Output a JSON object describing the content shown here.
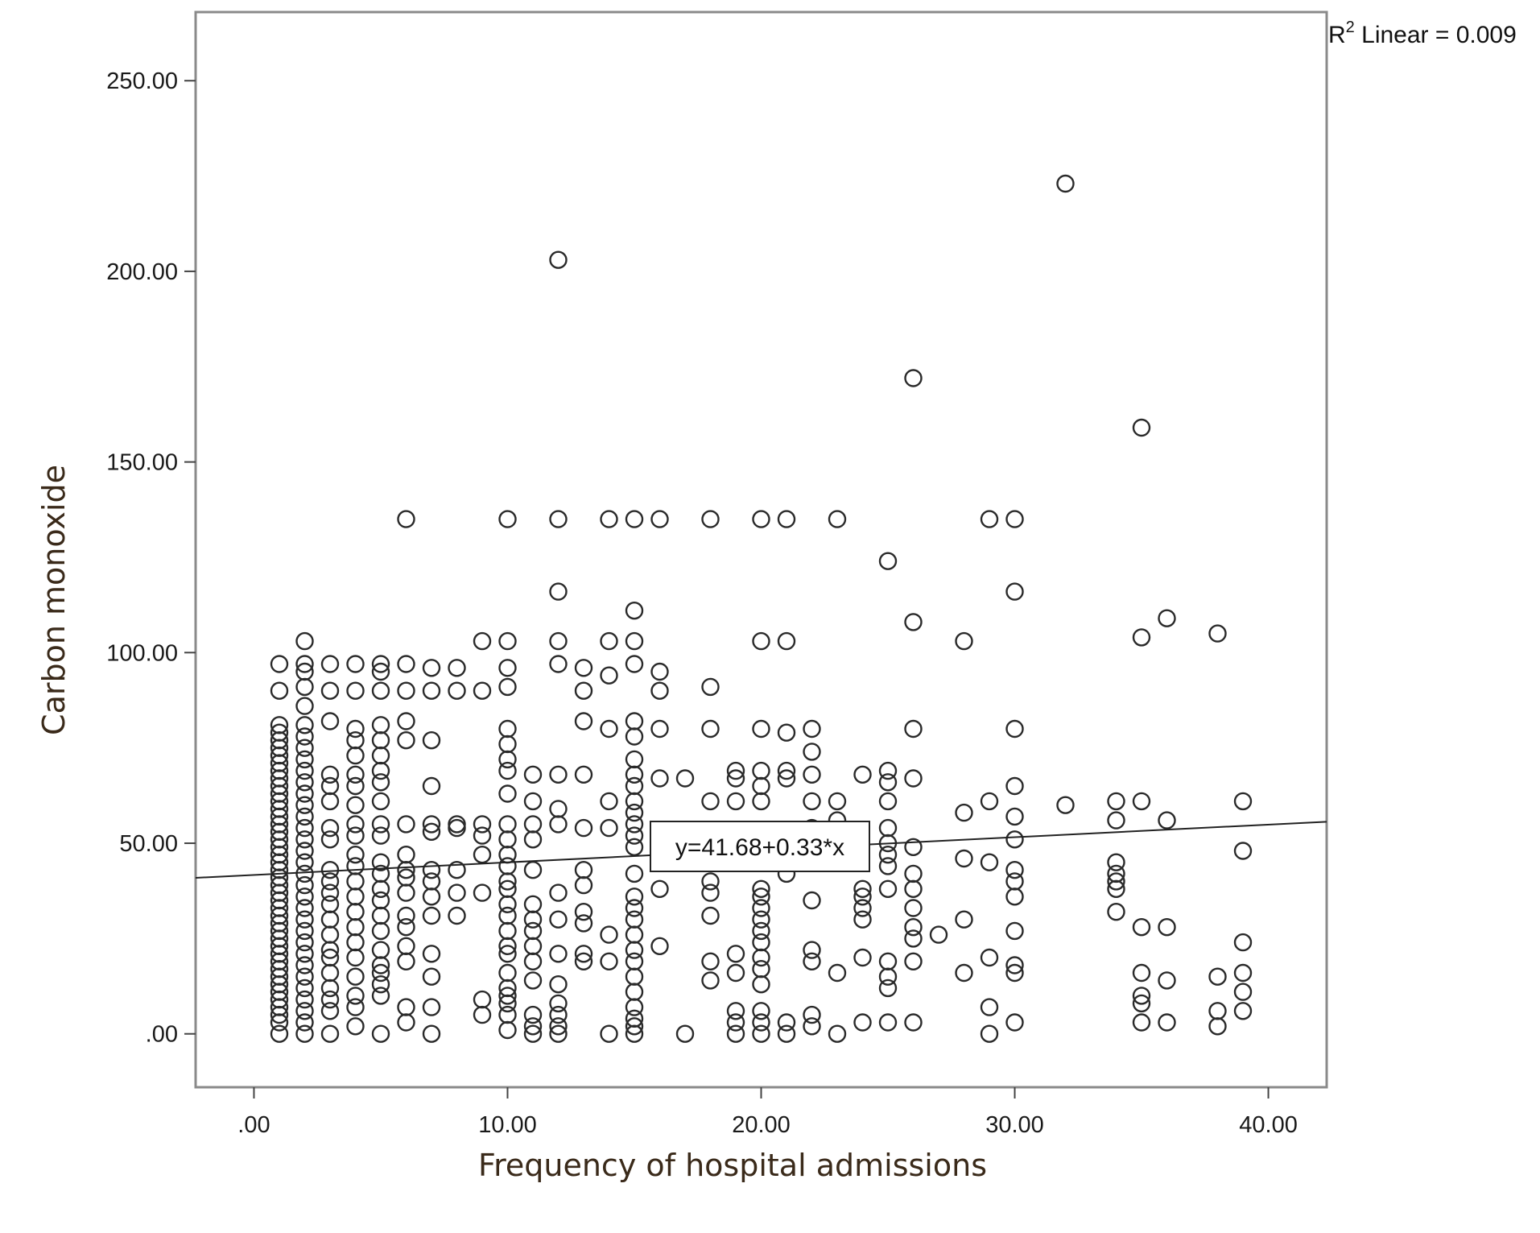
{
  "chart_data": {
    "type": "scatter",
    "title": "",
    "xlabel": "Frequency of hospital admissions",
    "ylabel": "Carbon monoxide",
    "xlim": [
      -2.3,
      42.3
    ],
    "ylim": [
      -14,
      268
    ],
    "x_ticks": [
      0,
      10,
      20,
      30,
      40
    ],
    "x_tick_labels": [
      ".00",
      "10.00",
      "20.00",
      "30.00",
      "40.00"
    ],
    "y_ticks": [
      0,
      50,
      100,
      150,
      200,
      250
    ],
    "y_tick_labels": [
      ".00",
      "50.00",
      "100.00",
      "150.00",
      "200.00",
      "250.00"
    ],
    "grid": false,
    "fit_line": {
      "intercept": 41.68,
      "slope": 0.33,
      "label": "y=41.68+0.33*x"
    },
    "r2_label_prefix": "R",
    "r2_label_sup": "2",
    "r2_label_rest": " Linear = 0.009",
    "points": [
      [
        1,
        0
      ],
      [
        1,
        3
      ],
      [
        1,
        5
      ],
      [
        1,
        7
      ],
      [
        1,
        9
      ],
      [
        1,
        11
      ],
      [
        1,
        13
      ],
      [
        1,
        15
      ],
      [
        1,
        17
      ],
      [
        1,
        19
      ],
      [
        1,
        21
      ],
      [
        1,
        23
      ],
      [
        1,
        25
      ],
      [
        1,
        27
      ],
      [
        1,
        29
      ],
      [
        1,
        31
      ],
      [
        1,
        33
      ],
      [
        1,
        35
      ],
      [
        1,
        37
      ],
      [
        1,
        39
      ],
      [
        1,
        41
      ],
      [
        1,
        43
      ],
      [
        1,
        45
      ],
      [
        1,
        47
      ],
      [
        1,
        49
      ],
      [
        1,
        51
      ],
      [
        1,
        53
      ],
      [
        1,
        55
      ],
      [
        1,
        57
      ],
      [
        1,
        59
      ],
      [
        1,
        61
      ],
      [
        1,
        63
      ],
      [
        1,
        65
      ],
      [
        1,
        67
      ],
      [
        1,
        69
      ],
      [
        1,
        71
      ],
      [
        1,
        73
      ],
      [
        1,
        75
      ],
      [
        1,
        77
      ],
      [
        1,
        79
      ],
      [
        1,
        81
      ],
      [
        1,
        90
      ],
      [
        1,
        97
      ],
      [
        2,
        0
      ],
      [
        2,
        3
      ],
      [
        2,
        6
      ],
      [
        2,
        9
      ],
      [
        2,
        12
      ],
      [
        2,
        15
      ],
      [
        2,
        18
      ],
      [
        2,
        21
      ],
      [
        2,
        24
      ],
      [
        2,
        27
      ],
      [
        2,
        30
      ],
      [
        2,
        33
      ],
      [
        2,
        36
      ],
      [
        2,
        39
      ],
      [
        2,
        42
      ],
      [
        2,
        45
      ],
      [
        2,
        48
      ],
      [
        2,
        51
      ],
      [
        2,
        54
      ],
      [
        2,
        57
      ],
      [
        2,
        60
      ],
      [
        2,
        63
      ],
      [
        2,
        66
      ],
      [
        2,
        69
      ],
      [
        2,
        72
      ],
      [
        2,
        75
      ],
      [
        2,
        78
      ],
      [
        2,
        81
      ],
      [
        2,
        86
      ],
      [
        2,
        91
      ],
      [
        2,
        95
      ],
      [
        2,
        97
      ],
      [
        2,
        103
      ],
      [
        3,
        0
      ],
      [
        3,
        6
      ],
      [
        3,
        9
      ],
      [
        3,
        12
      ],
      [
        3,
        16
      ],
      [
        3,
        20
      ],
      [
        3,
        22
      ],
      [
        3,
        26
      ],
      [
        3,
        30
      ],
      [
        3,
        34
      ],
      [
        3,
        37
      ],
      [
        3,
        40
      ],
      [
        3,
        43
      ],
      [
        3,
        51
      ],
      [
        3,
        54
      ],
      [
        3,
        61
      ],
      [
        3,
        65
      ],
      [
        3,
        68
      ],
      [
        3,
        82
      ],
      [
        3,
        90
      ],
      [
        3,
        97
      ],
      [
        4,
        2
      ],
      [
        4,
        7
      ],
      [
        4,
        10
      ],
      [
        4,
        15
      ],
      [
        4,
        20
      ],
      [
        4,
        24
      ],
      [
        4,
        28
      ],
      [
        4,
        32
      ],
      [
        4,
        36
      ],
      [
        4,
        40
      ],
      [
        4,
        44
      ],
      [
        4,
        47
      ],
      [
        4,
        52
      ],
      [
        4,
        55
      ],
      [
        4,
        60
      ],
      [
        4,
        65
      ],
      [
        4,
        68
      ],
      [
        4,
        73
      ],
      [
        4,
        77
      ],
      [
        4,
        80
      ],
      [
        4,
        90
      ],
      [
        4,
        97
      ],
      [
        5,
        0
      ],
      [
        5,
        10
      ],
      [
        5,
        13
      ],
      [
        5,
        16
      ],
      [
        5,
        18
      ],
      [
        5,
        22
      ],
      [
        5,
        27
      ],
      [
        5,
        31
      ],
      [
        5,
        35
      ],
      [
        5,
        38
      ],
      [
        5,
        42
      ],
      [
        5,
        45
      ],
      [
        5,
        52
      ],
      [
        5,
        55
      ],
      [
        5,
        61
      ],
      [
        5,
        66
      ],
      [
        5,
        69
      ],
      [
        5,
        73
      ],
      [
        5,
        77
      ],
      [
        5,
        81
      ],
      [
        5,
        90
      ],
      [
        5,
        95
      ],
      [
        5,
        97
      ],
      [
        6,
        3
      ],
      [
        6,
        7
      ],
      [
        6,
        19
      ],
      [
        6,
        23
      ],
      [
        6,
        28
      ],
      [
        6,
        31
      ],
      [
        6,
        37
      ],
      [
        6,
        41
      ],
      [
        6,
        43
      ],
      [
        6,
        47
      ],
      [
        6,
        55
      ],
      [
        6,
        77
      ],
      [
        6,
        82
      ],
      [
        6,
        90
      ],
      [
        6,
        97
      ],
      [
        6,
        135
      ],
      [
        7,
        0
      ],
      [
        7,
        7
      ],
      [
        7,
        15
      ],
      [
        7,
        21
      ],
      [
        7,
        31
      ],
      [
        7,
        36
      ],
      [
        7,
        40
      ],
      [
        7,
        43
      ],
      [
        7,
        53
      ],
      [
        7,
        55
      ],
      [
        7,
        65
      ],
      [
        7,
        77
      ],
      [
        7,
        90
      ],
      [
        7,
        96
      ],
      [
        8,
        31
      ],
      [
        8,
        37
      ],
      [
        8,
        43
      ],
      [
        8,
        54
      ],
      [
        8,
        55
      ],
      [
        8,
        90
      ],
      [
        8,
        96
      ],
      [
        9,
        5
      ],
      [
        9,
        9
      ],
      [
        9,
        37
      ],
      [
        9,
        47
      ],
      [
        9,
        52
      ],
      [
        9,
        55
      ],
      [
        9,
        90
      ],
      [
        9,
        103
      ],
      [
        10,
        1
      ],
      [
        10,
        5
      ],
      [
        10,
        8
      ],
      [
        10,
        10
      ],
      [
        10,
        12
      ],
      [
        10,
        16
      ],
      [
        10,
        21
      ],
      [
        10,
        23
      ],
      [
        10,
        27
      ],
      [
        10,
        31
      ],
      [
        10,
        34
      ],
      [
        10,
        38
      ],
      [
        10,
        40
      ],
      [
        10,
        44
      ],
      [
        10,
        47
      ],
      [
        10,
        51
      ],
      [
        10,
        55
      ],
      [
        10,
        63
      ],
      [
        10,
        69
      ],
      [
        10,
        72
      ],
      [
        10,
        76
      ],
      [
        10,
        80
      ],
      [
        10,
        91
      ],
      [
        10,
        96
      ],
      [
        10,
        103
      ],
      [
        10,
        135
      ],
      [
        11,
        0
      ],
      [
        11,
        2
      ],
      [
        11,
        5
      ],
      [
        11,
        14
      ],
      [
        11,
        19
      ],
      [
        11,
        23
      ],
      [
        11,
        27
      ],
      [
        11,
        30
      ],
      [
        11,
        34
      ],
      [
        11,
        43
      ],
      [
        11,
        51
      ],
      [
        11,
        55
      ],
      [
        11,
        61
      ],
      [
        11,
        68
      ],
      [
        12,
        0
      ],
      [
        12,
        2
      ],
      [
        12,
        5
      ],
      [
        12,
        8
      ],
      [
        12,
        13
      ],
      [
        12,
        21
      ],
      [
        12,
        30
      ],
      [
        12,
        37
      ],
      [
        12,
        55
      ],
      [
        12,
        59
      ],
      [
        12,
        68
      ],
      [
        12,
        97
      ],
      [
        12,
        103
      ],
      [
        12,
        116
      ],
      [
        12,
        135
      ],
      [
        12,
        203
      ],
      [
        13,
        19
      ],
      [
        13,
        21
      ],
      [
        13,
        29
      ],
      [
        13,
        32
      ],
      [
        13,
        39
      ],
      [
        13,
        43
      ],
      [
        13,
        54
      ],
      [
        13,
        68
      ],
      [
        13,
        82
      ],
      [
        13,
        90
      ],
      [
        13,
        96
      ],
      [
        14,
        0
      ],
      [
        14,
        19
      ],
      [
        14,
        26
      ],
      [
        14,
        54
      ],
      [
        14,
        61
      ],
      [
        14,
        80
      ],
      [
        14,
        94
      ],
      [
        14,
        103
      ],
      [
        14,
        135
      ],
      [
        15,
        0
      ],
      [
        15,
        2
      ],
      [
        15,
        4
      ],
      [
        15,
        7
      ],
      [
        15,
        11
      ],
      [
        15,
        15
      ],
      [
        15,
        19
      ],
      [
        15,
        22
      ],
      [
        15,
        26
      ],
      [
        15,
        30
      ],
      [
        15,
        33
      ],
      [
        15,
        36
      ],
      [
        15,
        42
      ],
      [
        15,
        49
      ],
      [
        15,
        52
      ],
      [
        15,
        55
      ],
      [
        15,
        58
      ],
      [
        15,
        61
      ],
      [
        15,
        65
      ],
      [
        15,
        68
      ],
      [
        15,
        72
      ],
      [
        15,
        78
      ],
      [
        15,
        82
      ],
      [
        15,
        97
      ],
      [
        15,
        103
      ],
      [
        15,
        111
      ],
      [
        15,
        135
      ],
      [
        16,
        23
      ],
      [
        16,
        38
      ],
      [
        16,
        67
      ],
      [
        16,
        80
      ],
      [
        16,
        90
      ],
      [
        16,
        95
      ],
      [
        16,
        135
      ],
      [
        17,
        0
      ],
      [
        17,
        67
      ],
      [
        18,
        14
      ],
      [
        18,
        19
      ],
      [
        18,
        31
      ],
      [
        18,
        37
      ],
      [
        18,
        40
      ],
      [
        18,
        61
      ],
      [
        18,
        80
      ],
      [
        18,
        91
      ],
      [
        18,
        135
      ],
      [
        19,
        0
      ],
      [
        19,
        3
      ],
      [
        19,
        6
      ],
      [
        19,
        16
      ],
      [
        19,
        21
      ],
      [
        19,
        61
      ],
      [
        19,
        67
      ],
      [
        19,
        69
      ],
      [
        20,
        0
      ],
      [
        20,
        3
      ],
      [
        20,
        6
      ],
      [
        20,
        13
      ],
      [
        20,
        17
      ],
      [
        20,
        20
      ],
      [
        20,
        24
      ],
      [
        20,
        27
      ],
      [
        20,
        30
      ],
      [
        20,
        33
      ],
      [
        20,
        36
      ],
      [
        20,
        38
      ],
      [
        20,
        61
      ],
      [
        20,
        65
      ],
      [
        20,
        69
      ],
      [
        20,
        80
      ],
      [
        20,
        103
      ],
      [
        20,
        135
      ],
      [
        21,
        0
      ],
      [
        21,
        3
      ],
      [
        21,
        42
      ],
      [
        21,
        67
      ],
      [
        21,
        69
      ],
      [
        21,
        79
      ],
      [
        21,
        103
      ],
      [
        21,
        135
      ],
      [
        22,
        2
      ],
      [
        22,
        5
      ],
      [
        22,
        19
      ],
      [
        22,
        22
      ],
      [
        22,
        35
      ],
      [
        22,
        49
      ],
      [
        22,
        54
      ],
      [
        22,
        61
      ],
      [
        22,
        68
      ],
      [
        22,
        74
      ],
      [
        22,
        80
      ],
      [
        23,
        0
      ],
      [
        23,
        16
      ],
      [
        23,
        56
      ],
      [
        23,
        61
      ],
      [
        23,
        135
      ],
      [
        24,
        3
      ],
      [
        24,
        20
      ],
      [
        24,
        30
      ],
      [
        24,
        33
      ],
      [
        24,
        36
      ],
      [
        24,
        38
      ],
      [
        24,
        68
      ],
      [
        25,
        3
      ],
      [
        25,
        12
      ],
      [
        25,
        15
      ],
      [
        25,
        19
      ],
      [
        25,
        38
      ],
      [
        25,
        44
      ],
      [
        25,
        47
      ],
      [
        25,
        50
      ],
      [
        25,
        54
      ],
      [
        25,
        61
      ],
      [
        25,
        66
      ],
      [
        25,
        69
      ],
      [
        25,
        124
      ],
      [
        26,
        3
      ],
      [
        26,
        19
      ],
      [
        26,
        25
      ],
      [
        26,
        28
      ],
      [
        26,
        33
      ],
      [
        26,
        38
      ],
      [
        26,
        42
      ],
      [
        26,
        49
      ],
      [
        26,
        67
      ],
      [
        26,
        80
      ],
      [
        26,
        108
      ],
      [
        26,
        172
      ],
      [
        27,
        26
      ],
      [
        28,
        16
      ],
      [
        28,
        30
      ],
      [
        28,
        46
      ],
      [
        28,
        58
      ],
      [
        28,
        103
      ],
      [
        29,
        0
      ],
      [
        29,
        7
      ],
      [
        29,
        20
      ],
      [
        29,
        45
      ],
      [
        29,
        61
      ],
      [
        29,
        135
      ],
      [
        30,
        3
      ],
      [
        30,
        16
      ],
      [
        30,
        18
      ],
      [
        30,
        27
      ],
      [
        30,
        36
      ],
      [
        30,
        40
      ],
      [
        30,
        43
      ],
      [
        30,
        51
      ],
      [
        30,
        57
      ],
      [
        30,
        65
      ],
      [
        30,
        80
      ],
      [
        30,
        116
      ],
      [
        30,
        135
      ],
      [
        32,
        60
      ],
      [
        32,
        223
      ],
      [
        34,
        32
      ],
      [
        34,
        38
      ],
      [
        34,
        40
      ],
      [
        34,
        42
      ],
      [
        34,
        45
      ],
      [
        34,
        56
      ],
      [
        34,
        61
      ],
      [
        35,
        3
      ],
      [
        35,
        8
      ],
      [
        35,
        10
      ],
      [
        35,
        16
      ],
      [
        35,
        28
      ],
      [
        35,
        61
      ],
      [
        35,
        104
      ],
      [
        35,
        159
      ],
      [
        36,
        3
      ],
      [
        36,
        14
      ],
      [
        36,
        28
      ],
      [
        36,
        56
      ],
      [
        36,
        109
      ],
      [
        38,
        2
      ],
      [
        38,
        6
      ],
      [
        38,
        15
      ],
      [
        38,
        105
      ],
      [
        39,
        6
      ],
      [
        39,
        11
      ],
      [
        39,
        16
      ],
      [
        39,
        24
      ],
      [
        39,
        48
      ],
      [
        39,
        61
      ]
    ]
  }
}
